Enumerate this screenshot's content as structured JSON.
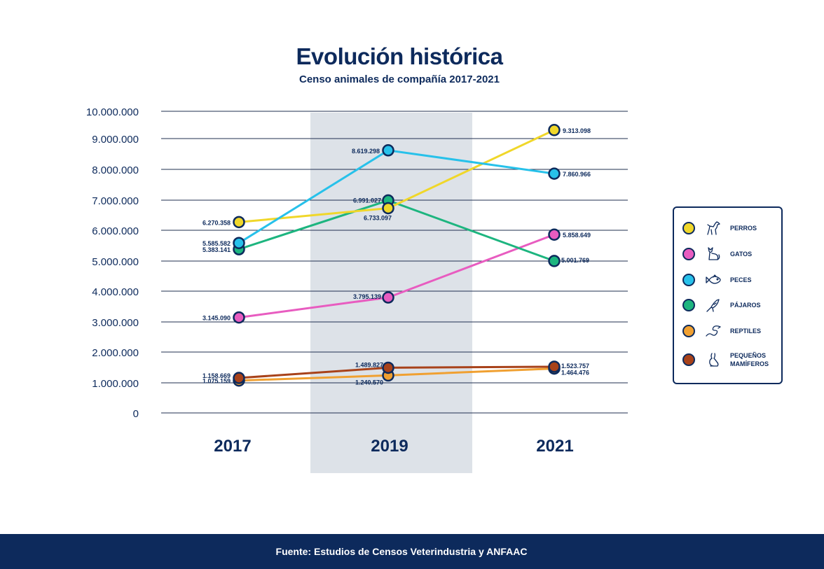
{
  "title": "Evolución histórica",
  "subtitle": "Censo animales de compañía 2017-2021",
  "footer": "Fuente: Estudios de Censos Veterindustria y ANFAAC",
  "colors": {
    "navy": "#0d2a5c",
    "highlight_band": "#dde2e8",
    "perros": "#f0d72a",
    "gatos": "#e85cc0",
    "peces": "#27c1ea",
    "pajaros": "#1db57f",
    "reptiles": "#f0a031",
    "pequenos": "#a8421a"
  },
  "chart_data": {
    "type": "line",
    "title": "Evolución histórica",
    "subtitle": "Censo animales de compañía 2017-2021",
    "categories": [
      "2017",
      "2019",
      "2021"
    ],
    "highlighted_category": "2019",
    "ylim": [
      0,
      10000000
    ],
    "yticks": [
      0,
      1000000,
      2000000,
      3000000,
      4000000,
      5000000,
      6000000,
      7000000,
      8000000,
      9000000,
      10000000
    ],
    "ytick_labels": [
      "0",
      "1.000.000",
      "2.000.000",
      "3.000.000",
      "4.000.000",
      "5.000.000",
      "6.000.000",
      "7.000.000",
      "8.000.000",
      "9.000.000",
      "10.000.000"
    ],
    "legend_position": "right",
    "series": [
      {
        "key": "perros",
        "name": "PERROS",
        "icon": "dog-icon",
        "values": [
          6270358,
          6733097,
          9313098
        ],
        "labels": [
          "6.270.358",
          "6.733.097",
          "9.313.098"
        ]
      },
      {
        "key": "gatos",
        "name": "GATOS",
        "icon": "cat-icon",
        "values": [
          3145090,
          3795139,
          5858649
        ],
        "labels": [
          "3.145.090",
          "3.795.139",
          "5.858.649"
        ]
      },
      {
        "key": "peces",
        "name": "PECES",
        "icon": "fish-icon",
        "values": [
          5585582,
          8619298,
          7860966
        ],
        "labels": [
          "5.585.582",
          "8.619.298",
          "7.860.966"
        ]
      },
      {
        "key": "pajaros",
        "name": "PÁJAROS",
        "icon": "bird-icon",
        "values": [
          5383141,
          6991027,
          5001769
        ],
        "labels": [
          "5.383.141",
          "6.991.027",
          "5.001.769"
        ]
      },
      {
        "key": "reptiles",
        "name": "REPTILES",
        "icon": "snake-icon",
        "values": [
          1075159,
          1240570,
          1464476
        ],
        "labels": [
          "1.075.159",
          "1.240.570",
          "1.464.476"
        ]
      },
      {
        "key": "pequenos",
        "name": "PEQUEÑOS\nMAMÍFEROS",
        "icon": "rabbit-icon",
        "values": [
          1158669,
          1489827,
          1523757
        ],
        "labels": [
          "1.158.669",
          "1.489.827",
          "1.523.757"
        ]
      }
    ]
  }
}
